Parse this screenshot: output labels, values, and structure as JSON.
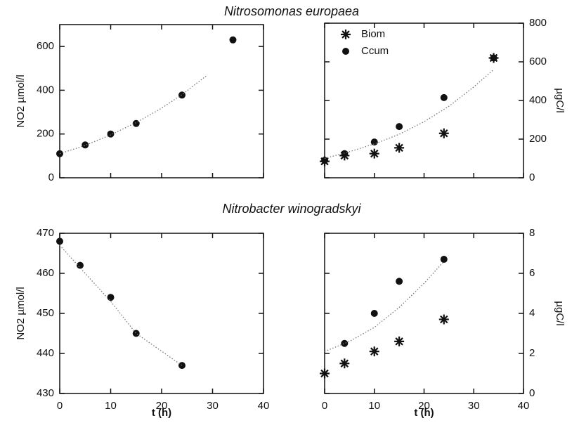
{
  "chart_data": [
    {
      "type": "scatter",
      "title": "Nitrosomonas europaea",
      "ylabel": "NO2 µmol/l",
      "y_axis": "left",
      "xtick_labels": false,
      "xlim": [
        0,
        40
      ],
      "xticks": [
        0,
        10,
        20,
        30,
        40
      ],
      "ylim": [
        0,
        700
      ],
      "yticks": [
        0,
        200,
        400,
        600
      ],
      "series": [
        {
          "marker": "circle",
          "color": "#111111",
          "x": [
            0,
            5,
            10,
            15,
            24,
            34
          ],
          "values": [
            110,
            150,
            200,
            248,
            378,
            630
          ]
        },
        {
          "style": "dotted",
          "color": "#777777",
          "x": [
            0,
            5,
            10,
            15,
            20,
            24,
            29
          ],
          "values": [
            110,
            148,
            196,
            252,
            318,
            380,
            470
          ]
        }
      ]
    },
    {
      "type": "scatter",
      "ylabel": "µgC/l",
      "y_axis": "right",
      "xtick_labels": false,
      "legend": "upper left",
      "xlim": [
        0,
        40
      ],
      "xticks": [
        0,
        10,
        20,
        30,
        40
      ],
      "ylim": [
        0,
        800
      ],
      "yticks": [
        0,
        200,
        400,
        600,
        800
      ],
      "series": [
        {
          "name": "Biom",
          "marker": "star",
          "color": "#111111",
          "x": [
            0,
            4,
            10,
            15,
            24,
            34
          ],
          "values": [
            85,
            115,
            125,
            155,
            230,
            620
          ]
        },
        {
          "name": "Ccum",
          "marker": "circle",
          "color": "#111111",
          "x": [
            0,
            4,
            10,
            15,
            24,
            34
          ],
          "values": [
            90,
            125,
            185,
            265,
            415,
            620
          ]
        },
        {
          "style": "dotted",
          "color": "#777777",
          "x": [
            0,
            5,
            10,
            15,
            20,
            25,
            30,
            34
          ],
          "values": [
            100,
            135,
            175,
            225,
            290,
            370,
            470,
            560
          ]
        }
      ]
    },
    {
      "type": "scatter",
      "title": "Nitrobacter winogradskyi",
      "ylabel": "NO2 µmol/l",
      "xlabel": "t (h)",
      "y_axis": "left",
      "xtick_labels": true,
      "xlim": [
        0,
        40
      ],
      "xticks": [
        0,
        10,
        20,
        30,
        40
      ],
      "ylim": [
        430,
        470
      ],
      "yticks": [
        430,
        440,
        450,
        460,
        470
      ],
      "series": [
        {
          "marker": "circle",
          "color": "#111111",
          "x": [
            0,
            4,
            10,
            15,
            24
          ],
          "values": [
            468,
            462,
            454,
            445,
            437
          ]
        },
        {
          "style": "dotted",
          "color": "#777777",
          "x": [
            0,
            5,
            10,
            15,
            24
          ],
          "values": [
            467,
            460,
            453,
            445,
            437
          ]
        }
      ]
    },
    {
      "type": "scatter",
      "ylabel": "µgC/l",
      "xlabel": "t (h)",
      "y_axis": "right",
      "xtick_labels": true,
      "xlim": [
        0,
        40
      ],
      "xticks": [
        0,
        10,
        20,
        30,
        40
      ],
      "ylim": [
        0,
        8
      ],
      "yticks": [
        0,
        2,
        4,
        6,
        8
      ],
      "series": [
        {
          "marker": "star",
          "color": "#111111",
          "x": [
            0,
            4,
            10,
            15,
            24
          ],
          "values": [
            1,
            1.5,
            2.1,
            2.6,
            3.7
          ]
        },
        {
          "marker": "circle",
          "color": "#111111",
          "x": [
            4,
            10,
            15,
            24
          ],
          "values": [
            2.5,
            4,
            5.6,
            6.7
          ]
        },
        {
          "style": "dotted",
          "color": "#777777",
          "x": [
            0,
            5,
            10,
            15,
            20,
            24
          ],
          "values": [
            2.1,
            2.6,
            3.3,
            4.3,
            5.5,
            6.6
          ]
        }
      ]
    }
  ]
}
